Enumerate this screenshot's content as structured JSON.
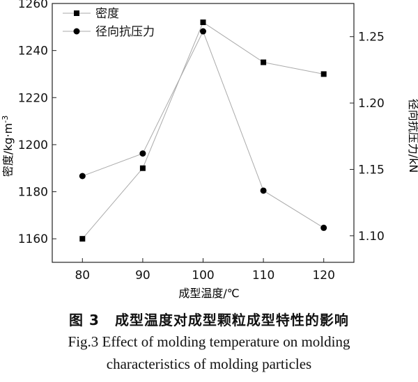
{
  "chart_data": {
    "type": "line",
    "x": [
      80,
      90,
      100,
      110,
      120
    ],
    "xticks": [
      "80",
      "90",
      "100",
      "110",
      "120"
    ],
    "xlabel": "成型温度/℃",
    "ylabel_left": "密度/kg·m",
    "ylabel_left_sup": "-3",
    "ylabel_right": "径向抗压力/kN",
    "ylim_left": [
      1150,
      1260
    ],
    "yticks_left": [
      "1160",
      "1180",
      "1200",
      "1220",
      "1240",
      "1260"
    ],
    "ylim_right": [
      1.08,
      1.275
    ],
    "yticks_right": [
      "1.10",
      "1.15",
      "1.20",
      "1.25"
    ],
    "legend_position": "top-left",
    "series": [
      {
        "name": "密度",
        "axis": "left",
        "marker": "square",
        "values": [
          1160,
          1190,
          1252,
          1235,
          1230
        ]
      },
      {
        "name": "径向抗压力",
        "axis": "right",
        "marker": "circle",
        "values": [
          1.145,
          1.162,
          1.254,
          1.134,
          1.106
        ]
      }
    ]
  },
  "caption": {
    "figure_no": "图 3",
    "title_cn": "成型温度对成型颗粒成型特性的影响",
    "title_en_line1": "Fig.3 Effect of molding temperature on molding",
    "title_en_line2": "characteristics of molding particles"
  }
}
